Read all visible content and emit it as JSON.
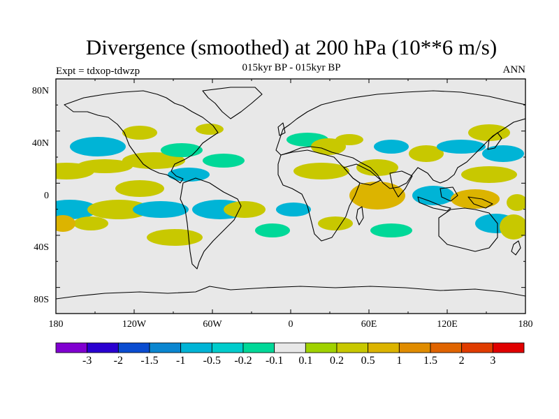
{
  "plot": {
    "title": "Divergence (smoothed) at 200 hPa (10**6 m/s)",
    "subtitle": "015kyr BP - 015kyr BP",
    "left_label": "Expt = tdxop-tdwzp",
    "right_label": "ANN"
  },
  "axes": {
    "lat_labels": [
      "80N",
      "40N",
      "0",
      "40S",
      "80S"
    ],
    "lon_labels": [
      "180",
      "120W",
      "60W",
      "0",
      "60E",
      "120E",
      "180"
    ]
  },
  "colorbar": {
    "labels": [
      "-3",
      "-2",
      "-1.5",
      "-1",
      "-0.5",
      "-0.2",
      "-0.1",
      "0.1",
      "0.2",
      "0.5",
      "1",
      "1.5",
      "2",
      "3"
    ],
    "colors": [
      "#8000d0",
      "#2a00d0",
      "#0a4cd0",
      "#0a86d0",
      "#00b4d6",
      "#00cccc",
      "#00d898",
      "#e8e8e8",
      "#a0d200",
      "#c8c800",
      "#dcb400",
      "#e08c00",
      "#e06400",
      "#e03c00",
      "#e00000"
    ]
  },
  "map": {
    "background_color": "#e8e8e8",
    "coastline_color": "#000000",
    "positive_color": "#c8c800",
    "negative_color": "#00b4d6",
    "strong_positive_color": "#dcb400",
    "weak_negative_color": "#00d898"
  }
}
